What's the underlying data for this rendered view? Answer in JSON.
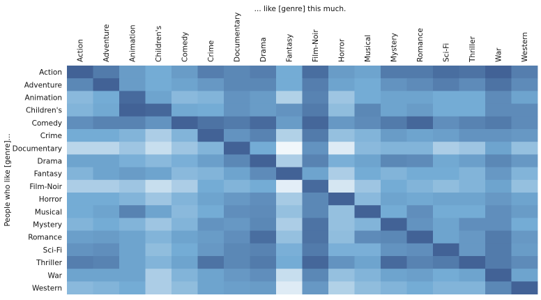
{
  "chart_data": {
    "type": "heatmap",
    "title": "... like [genre] this much.",
    "xlabel": "",
    "ylabel": "People who like [genre]...",
    "columns": [
      "Action",
      "Adventure",
      "Animation",
      "Children's",
      "Comedy",
      "Crime",
      "Documentary",
      "Drama",
      "Fantasy",
      "Film-Noir",
      "Horror",
      "Musical",
      "Mystery",
      "Romance",
      "Sci-Fi",
      "Thriller",
      "War",
      "Western"
    ],
    "rows": [
      "Action",
      "Adventure",
      "Animation",
      "Children's",
      "Comedy",
      "Crime",
      "Documentary",
      "Drama",
      "Fantasy",
      "Film-Noir",
      "Horror",
      "Musical",
      "Mystery",
      "Romance",
      "Sci-Fi",
      "Thriller",
      "War",
      "Western"
    ],
    "colormap": {
      "low": "#ffffff",
      "mid": "#74acd5",
      "high": "#3c5a8f"
    },
    "value_range": [
      0,
      1
    ],
    "grid": false,
    "colorbar": false,
    "values": [
      [
        0.95,
        0.8,
        0.6,
        0.5,
        0.6,
        0.78,
        0.72,
        0.78,
        0.5,
        0.88,
        0.6,
        0.55,
        0.8,
        0.8,
        0.88,
        0.85,
        0.95,
        0.78
      ],
      [
        0.72,
        0.95,
        0.6,
        0.5,
        0.55,
        0.62,
        0.72,
        0.72,
        0.5,
        0.78,
        0.55,
        0.5,
        0.65,
        0.7,
        0.78,
        0.7,
        0.85,
        0.7
      ],
      [
        0.42,
        0.5,
        0.9,
        0.55,
        0.42,
        0.45,
        0.65,
        0.6,
        0.28,
        0.75,
        0.35,
        0.5,
        0.55,
        0.55,
        0.5,
        0.5,
        0.7,
        0.55
      ],
      [
        0.45,
        0.52,
        0.95,
        0.92,
        0.52,
        0.5,
        0.65,
        0.6,
        0.65,
        0.8,
        0.4,
        0.72,
        0.55,
        0.6,
        0.5,
        0.5,
        0.7,
        0.7
      ],
      [
        0.68,
        0.75,
        0.75,
        0.65,
        0.95,
        0.85,
        0.8,
        0.9,
        0.6,
        0.92,
        0.62,
        0.7,
        0.8,
        0.92,
        0.68,
        0.75,
        0.8,
        0.7
      ],
      [
        0.5,
        0.5,
        0.45,
        0.3,
        0.45,
        0.95,
        0.65,
        0.75,
        0.28,
        0.8,
        0.38,
        0.45,
        0.6,
        0.55,
        0.58,
        0.65,
        0.65,
        0.62
      ],
      [
        0.25,
        0.25,
        0.35,
        0.2,
        0.35,
        0.45,
        0.95,
        0.5,
        0.05,
        0.65,
        0.12,
        0.42,
        0.45,
        0.45,
        0.3,
        0.35,
        0.55,
        0.38
      ],
      [
        0.55,
        0.55,
        0.48,
        0.42,
        0.48,
        0.58,
        0.72,
        0.95,
        0.3,
        0.75,
        0.48,
        0.55,
        0.72,
        0.7,
        0.52,
        0.58,
        0.72,
        0.62
      ],
      [
        0.45,
        0.55,
        0.6,
        0.55,
        0.42,
        0.45,
        0.55,
        0.7,
        0.95,
        0.55,
        0.3,
        0.5,
        0.45,
        0.5,
        0.5,
        0.45,
        0.62,
        0.45
      ],
      [
        0.3,
        0.3,
        0.35,
        0.2,
        0.3,
        0.5,
        0.45,
        0.5,
        0.1,
        0.9,
        0.15,
        0.35,
        0.5,
        0.45,
        0.4,
        0.45,
        0.55,
        0.38
      ],
      [
        0.5,
        0.5,
        0.45,
        0.35,
        0.45,
        0.55,
        0.62,
        0.68,
        0.32,
        0.72,
        0.95,
        0.42,
        0.55,
        0.52,
        0.55,
        0.55,
        0.62,
        0.55
      ],
      [
        0.5,
        0.55,
        0.75,
        0.55,
        0.42,
        0.5,
        0.68,
        0.7,
        0.38,
        0.72,
        0.38,
        0.95,
        0.5,
        0.68,
        0.5,
        0.5,
        0.68,
        0.6
      ],
      [
        0.45,
        0.5,
        0.45,
        0.35,
        0.45,
        0.65,
        0.62,
        0.72,
        0.3,
        0.85,
        0.38,
        0.45,
        0.95,
        0.65,
        0.55,
        0.68,
        0.68,
        0.5
      ],
      [
        0.58,
        0.6,
        0.55,
        0.45,
        0.55,
        0.6,
        0.68,
        0.88,
        0.38,
        0.85,
        0.4,
        0.7,
        0.72,
        0.95,
        0.55,
        0.62,
        0.8,
        0.62
      ],
      [
        0.65,
        0.68,
        0.55,
        0.4,
        0.5,
        0.62,
        0.72,
        0.75,
        0.48,
        0.8,
        0.48,
        0.48,
        0.65,
        0.68,
        0.95,
        0.62,
        0.8,
        0.6
      ],
      [
        0.78,
        0.75,
        0.55,
        0.45,
        0.55,
        0.85,
        0.72,
        0.8,
        0.5,
        0.92,
        0.65,
        0.55,
        0.9,
        0.75,
        0.8,
        0.95,
        0.8,
        0.7
      ],
      [
        0.55,
        0.55,
        0.55,
        0.3,
        0.45,
        0.55,
        0.62,
        0.68,
        0.2,
        0.72,
        0.38,
        0.45,
        0.55,
        0.58,
        0.5,
        0.55,
        0.95,
        0.55
      ],
      [
        0.42,
        0.45,
        0.5,
        0.3,
        0.4,
        0.55,
        0.58,
        0.6,
        0.12,
        0.62,
        0.28,
        0.4,
        0.45,
        0.5,
        0.45,
        0.45,
        0.72,
        0.95
      ]
    ]
  }
}
